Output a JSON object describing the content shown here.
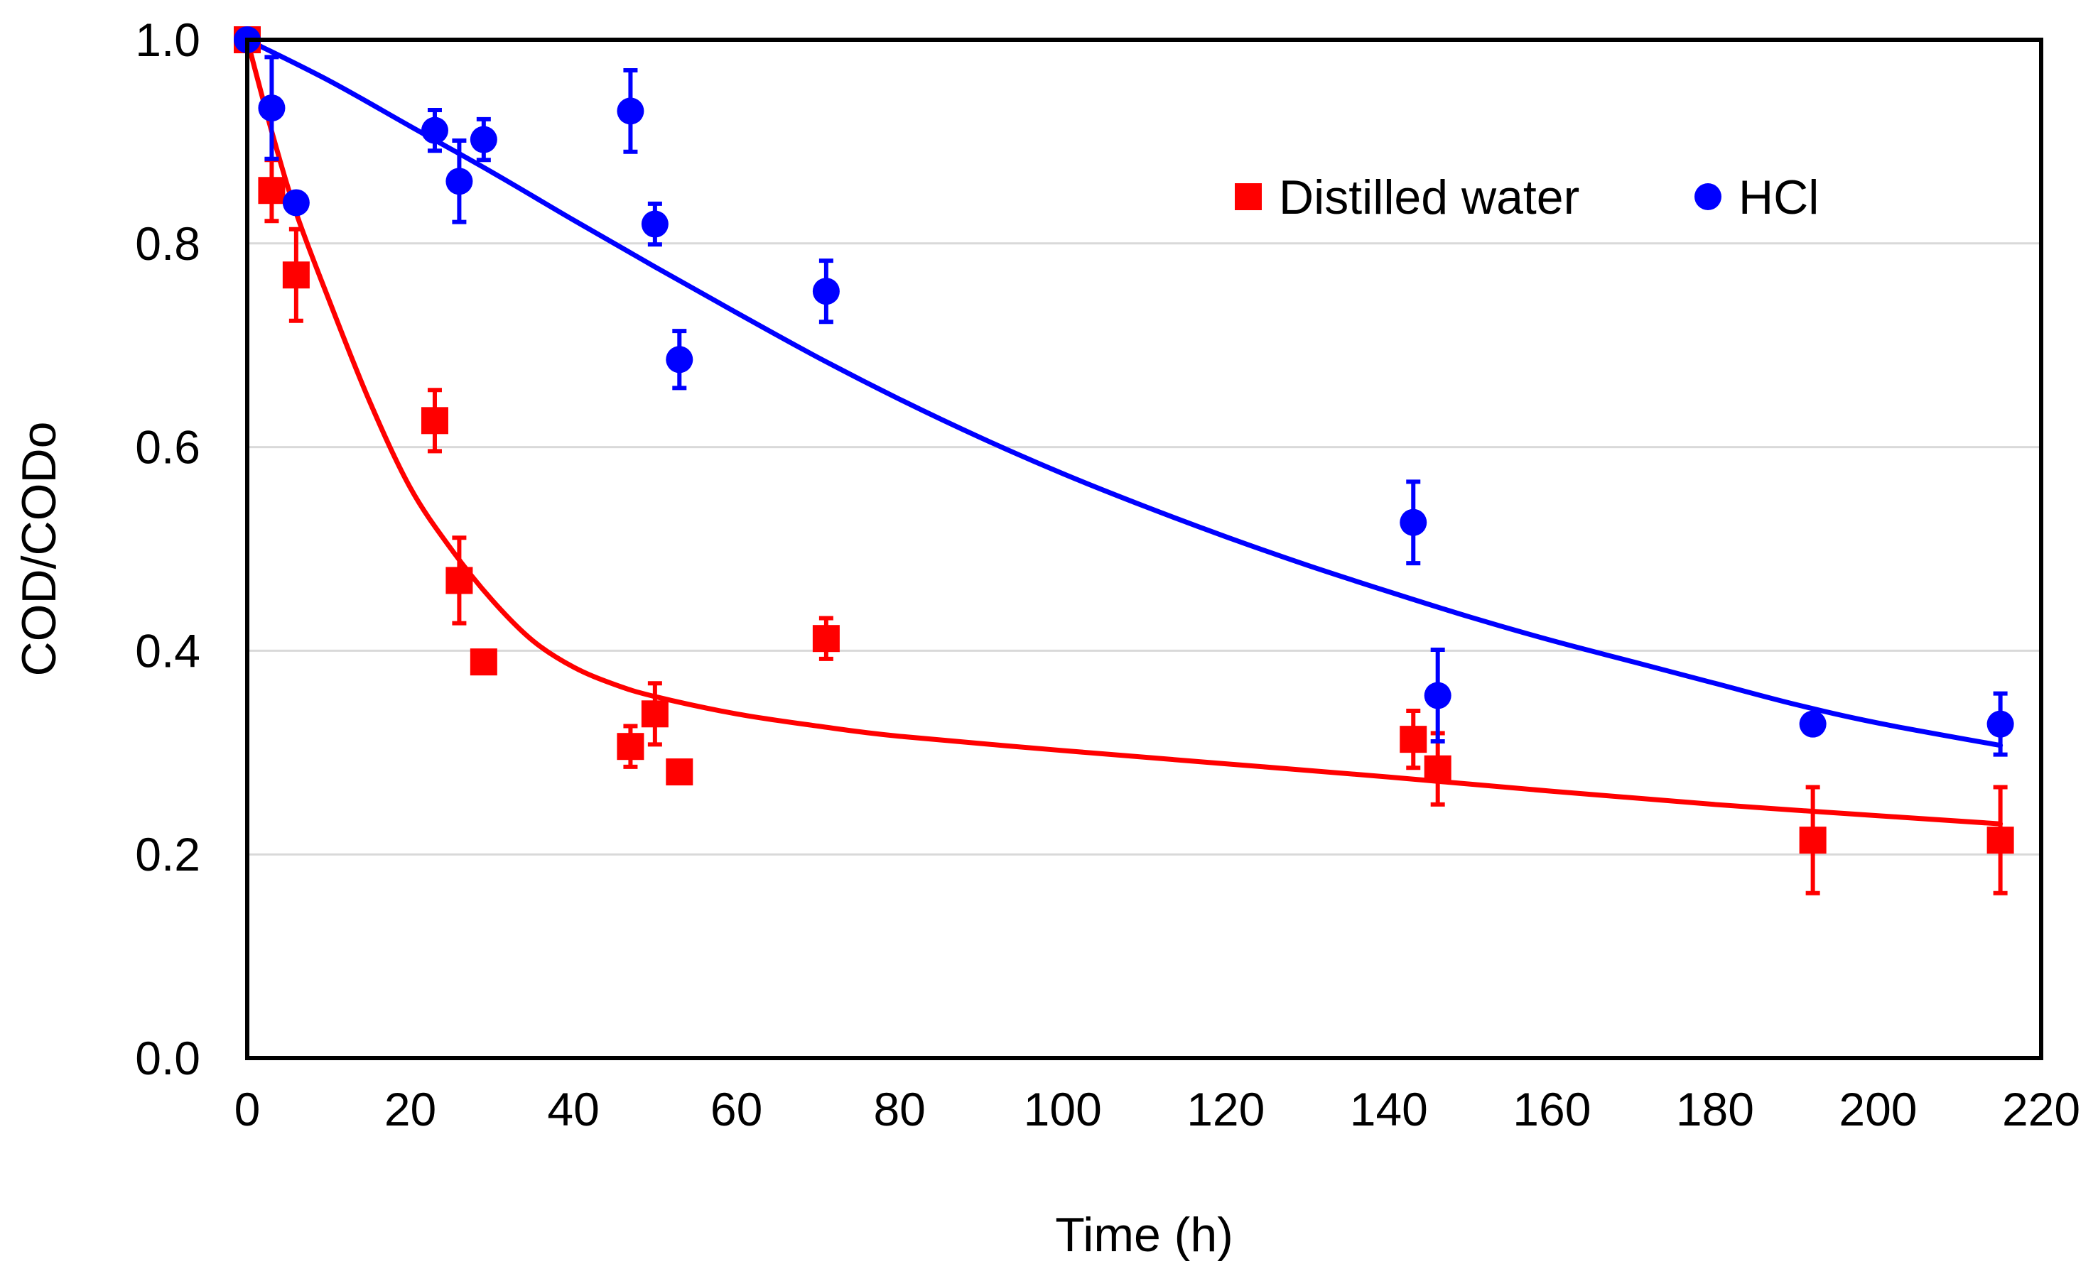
{
  "chart_data": {
    "type": "scatter",
    "title": "",
    "xlabel": "Time (h)",
    "ylabel": "COD/CODo",
    "xlim": [
      0,
      220
    ],
    "ylim": [
      0,
      1.0
    ],
    "xticks": [
      0,
      20,
      40,
      60,
      80,
      100,
      120,
      140,
      160,
      180,
      200,
      220
    ],
    "yticks": [
      0.0,
      0.2,
      0.4,
      0.6,
      0.8,
      1.0
    ],
    "xtick_labels": [
      "0",
      "20",
      "40",
      "60",
      "80",
      "100",
      "120",
      "140",
      "160",
      "180",
      "200",
      "220"
    ],
    "ytick_labels": [
      "0.0",
      "0.2",
      "0.4",
      "0.6",
      "0.8",
      "1.0"
    ],
    "grid": "horizontal",
    "legend_position": "top-right",
    "series": [
      {
        "name": "Distilled water",
        "color": "#ff0000",
        "marker": "square",
        "points": [
          {
            "x": 0,
            "y": 1.0,
            "err": 0
          },
          {
            "x": 3,
            "y": 0.852,
            "err": 0.03
          },
          {
            "x": 6,
            "y": 0.769,
            "err": 0.045
          },
          {
            "x": 23,
            "y": 0.626,
            "err": 0.03
          },
          {
            "x": 26,
            "y": 0.469,
            "err": 0.042
          },
          {
            "x": 29,
            "y": 0.389,
            "err": 0
          },
          {
            "x": 47,
            "y": 0.306,
            "err": 0.02
          },
          {
            "x": 50,
            "y": 0.338,
            "err": 0.03
          },
          {
            "x": 53,
            "y": 0.281,
            "err": 0
          },
          {
            "x": 71,
            "y": 0.412,
            "err": 0.02
          },
          {
            "x": 143,
            "y": 0.313,
            "err": 0.028
          },
          {
            "x": 146,
            "y": 0.284,
            "err": 0.035
          },
          {
            "x": 192,
            "y": 0.214,
            "err": 0.052
          },
          {
            "x": 215,
            "y": 0.214,
            "err": 0.052
          }
        ],
        "fit_curve": [
          [
            0,
            1.0
          ],
          [
            3,
            0.91
          ],
          [
            6,
            0.83
          ],
          [
            10,
            0.745
          ],
          [
            15,
            0.645
          ],
          [
            20,
            0.56
          ],
          [
            25,
            0.5
          ],
          [
            30,
            0.45
          ],
          [
            35,
            0.41
          ],
          [
            40,
            0.384
          ],
          [
            45,
            0.367
          ],
          [
            50,
            0.355
          ],
          [
            60,
            0.338
          ],
          [
            70,
            0.326
          ],
          [
            80,
            0.316
          ],
          [
            100,
            0.302
          ],
          [
            120,
            0.289
          ],
          [
            140,
            0.276
          ],
          [
            160,
            0.262
          ],
          [
            180,
            0.249
          ],
          [
            200,
            0.238
          ],
          [
            215,
            0.23
          ]
        ]
      },
      {
        "name": "HCl",
        "color": "#0000ff",
        "marker": "circle",
        "points": [
          {
            "x": 0,
            "y": 1.0,
            "err": 0
          },
          {
            "x": 3,
            "y": 0.933,
            "err": 0.05
          },
          {
            "x": 6,
            "y": 0.84,
            "err": 0
          },
          {
            "x": 23,
            "y": 0.911,
            "err": 0.02
          },
          {
            "x": 26,
            "y": 0.861,
            "err": 0.04
          },
          {
            "x": 29,
            "y": 0.902,
            "err": 0.02
          },
          {
            "x": 47,
            "y": 0.93,
            "err": 0.04
          },
          {
            "x": 50,
            "y": 0.819,
            "err": 0.02
          },
          {
            "x": 53,
            "y": 0.686,
            "err": 0.028
          },
          {
            "x": 71,
            "y": 0.753,
            "err": 0.03
          },
          {
            "x": 143,
            "y": 0.526,
            "err": 0.04
          },
          {
            "x": 146,
            "y": 0.356,
            "err": 0.045
          },
          {
            "x": 192,
            "y": 0.328,
            "err": 0
          },
          {
            "x": 215,
            "y": 0.328,
            "err": 0.03
          }
        ],
        "fit_curve": [
          [
            0,
            1.0
          ],
          [
            10,
            0.96
          ],
          [
            20,
            0.915
          ],
          [
            30,
            0.87
          ],
          [
            40,
            0.823
          ],
          [
            50,
            0.777
          ],
          [
            60,
            0.732
          ],
          [
            70,
            0.688
          ],
          [
            80,
            0.647
          ],
          [
            90,
            0.609
          ],
          [
            100,
            0.574
          ],
          [
            110,
            0.542
          ],
          [
            120,
            0.512
          ],
          [
            130,
            0.484
          ],
          [
            140,
            0.458
          ],
          [
            150,
            0.433
          ],
          [
            160,
            0.41
          ],
          [
            170,
            0.389
          ],
          [
            180,
            0.368
          ],
          [
            190,
            0.347
          ],
          [
            200,
            0.329
          ],
          [
            215,
            0.307
          ]
        ]
      }
    ]
  }
}
